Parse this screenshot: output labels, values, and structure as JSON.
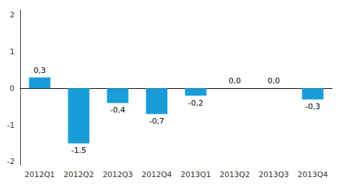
{
  "chart_data": {
    "type": "bar",
    "categories": [
      "2012Q1",
      "2012Q2",
      "2012Q3",
      "2012Q4",
      "2013Q1",
      "2013Q2",
      "2013Q3",
      "2013Q4"
    ],
    "values": [
      0.3,
      -1.5,
      -0.4,
      -0.7,
      -0.2,
      0.0,
      0.0,
      -0.3
    ],
    "value_labels": [
      "0,3",
      "-1,5",
      "-0,4",
      "-0,7",
      "-0,2",
      "0,0",
      "0,0",
      "-0,3"
    ],
    "data_labels": true,
    "color": "#1a9cd8",
    "ylim": [
      -2.1,
      2.15
    ],
    "yticks": [
      -2,
      -1,
      0,
      1,
      2
    ],
    "grid": false
  }
}
